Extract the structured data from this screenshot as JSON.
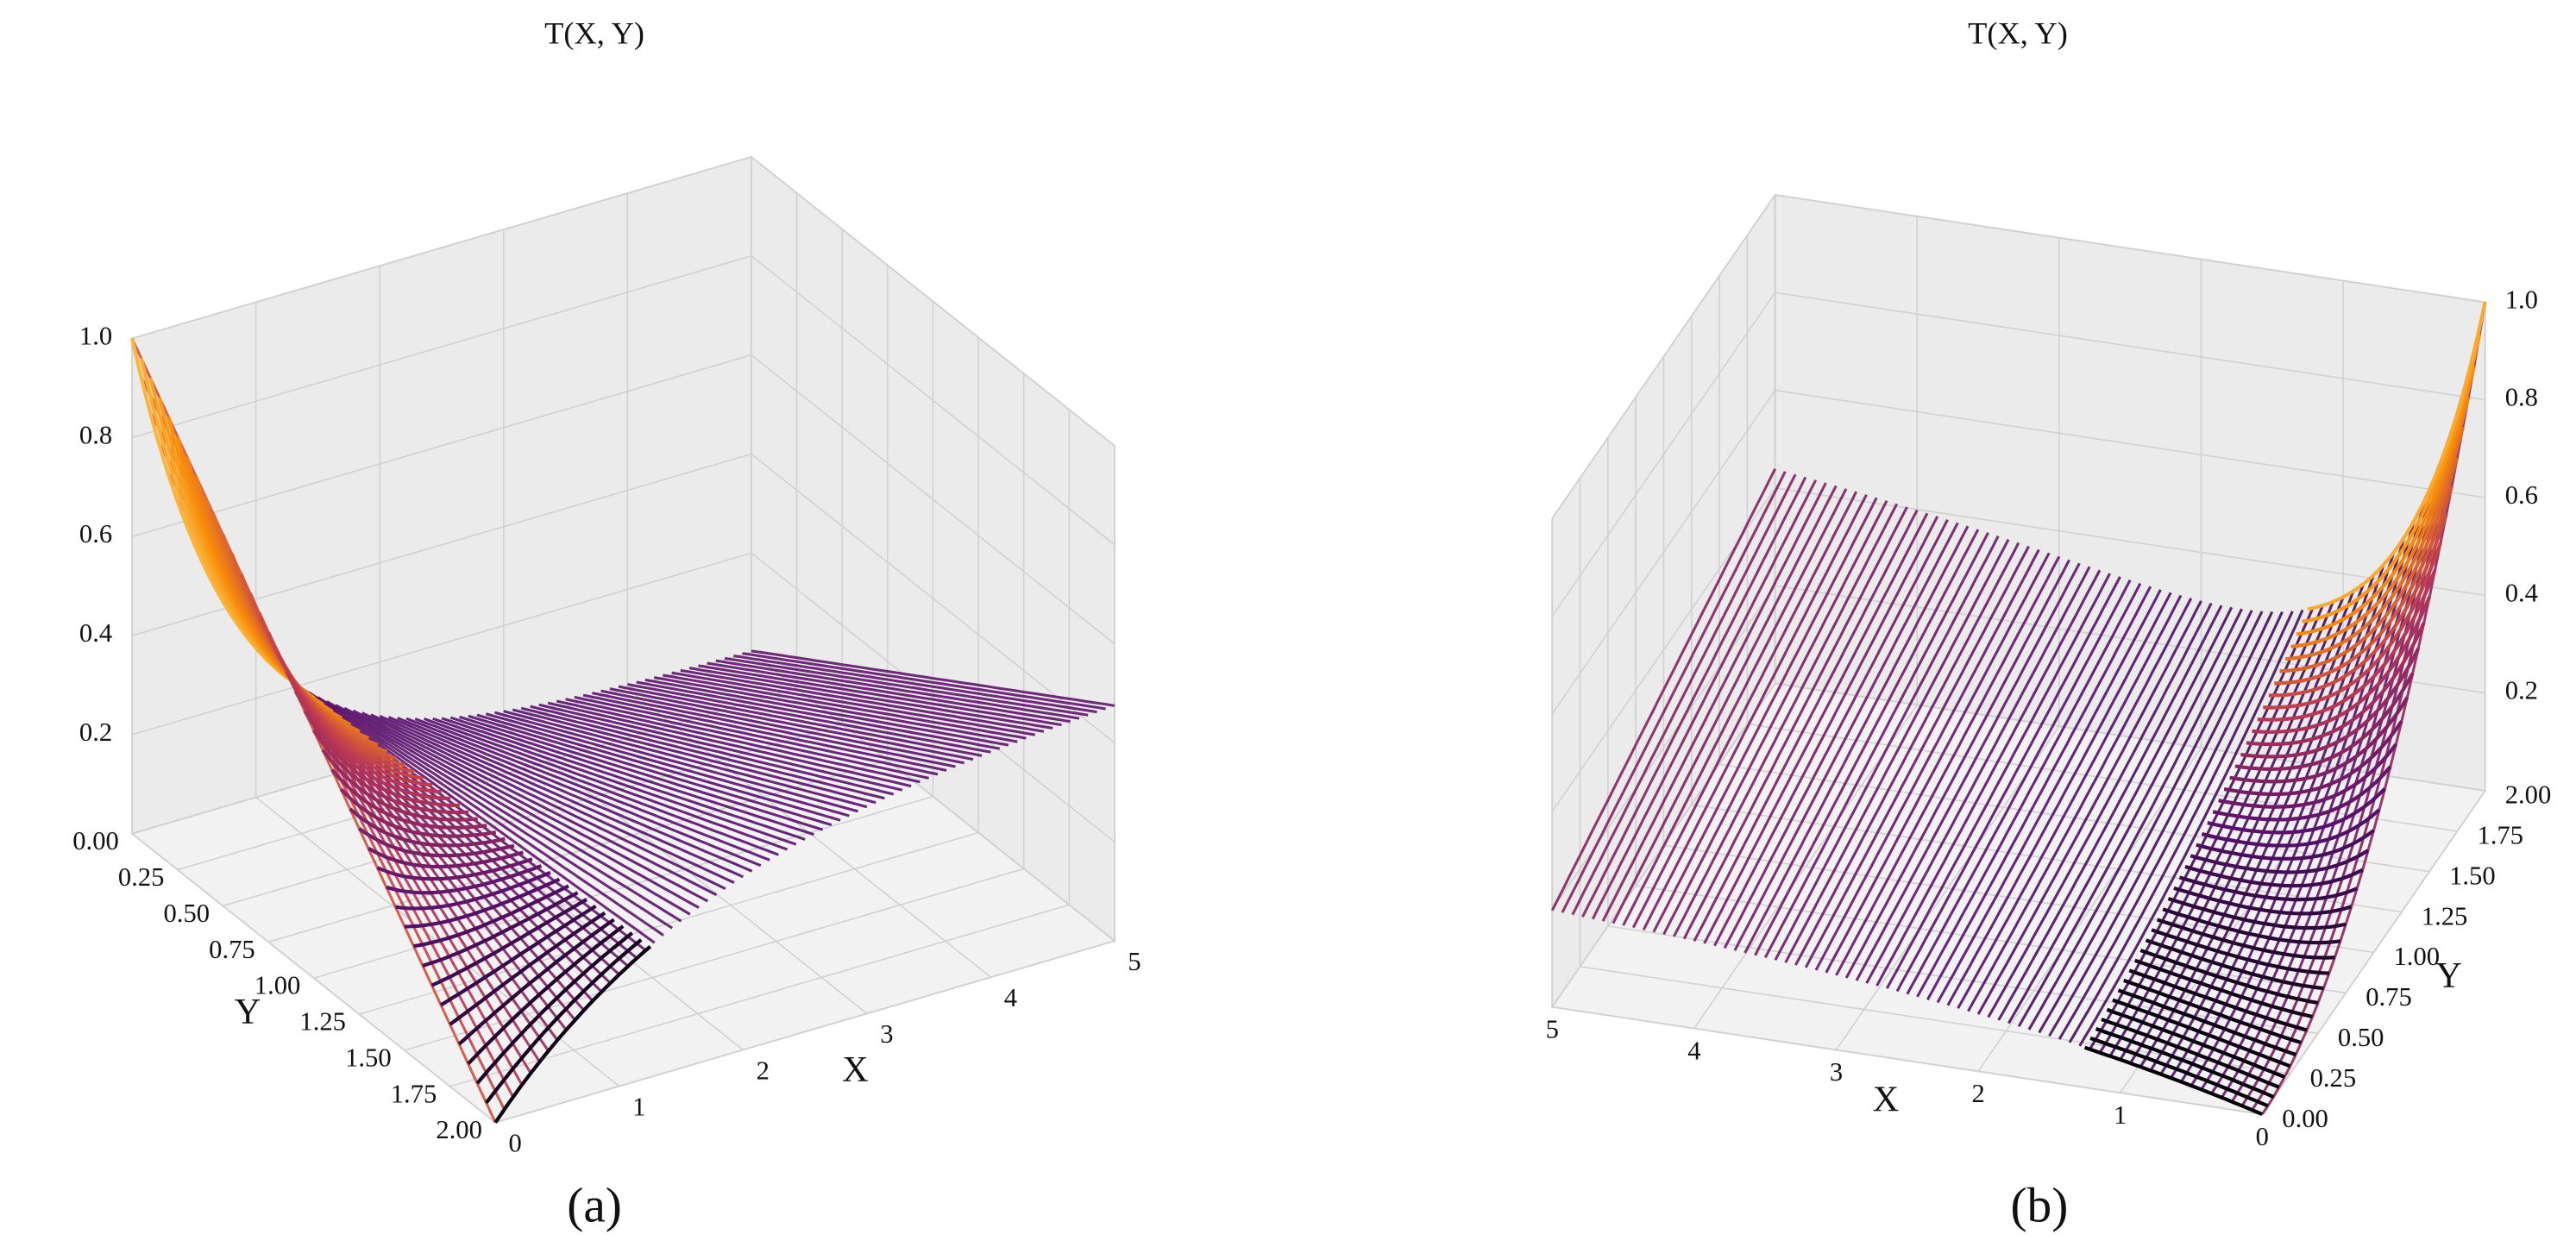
{
  "chart_data": [
    {
      "type": "surface3d",
      "title": "T(X, Y)",
      "xlabel": "X",
      "ylabel": "Y",
      "panel_label": "(a)",
      "xlim": [
        0,
        5
      ],
      "ylim": [
        0,
        2
      ],
      "zlim": [
        0,
        1
      ],
      "xticks": [
        0,
        1,
        2,
        3,
        4,
        5
      ],
      "yticks": [
        {
          "value": 0,
          "label": "0.00"
        },
        {
          "value": 0.25,
          "label": "0.25"
        },
        {
          "value": 0.5,
          "label": "0.50"
        },
        {
          "value": 0.75,
          "label": "0.75"
        },
        {
          "value": 1,
          "label": "1.00"
        },
        {
          "value": 1.25,
          "label": "1.25"
        },
        {
          "value": 1.5,
          "label": "1.50"
        },
        {
          "value": 1.75,
          "label": "1.75"
        },
        {
          "value": 2,
          "label": "2.00"
        }
      ],
      "zticks": [
        0.2,
        0.4,
        0.6,
        0.8,
        {
          "value": 1,
          "label": "1.0"
        }
      ],
      "colormap": "inferno",
      "grid": true
    },
    {
      "type": "surface3d",
      "title": "T(X, Y)",
      "xlabel": "X",
      "ylabel": "Y",
      "panel_label": "(b)",
      "xlim": [
        0,
        5
      ],
      "ylim": [
        0,
        2
      ],
      "zlim": [
        0,
        1
      ],
      "xticks": [
        0,
        1,
        2,
        3,
        4,
        5
      ],
      "yticks": [
        {
          "value": 0,
          "label": "0.00"
        },
        {
          "value": 0.25,
          "label": "0.25"
        },
        {
          "value": 0.5,
          "label": "0.50"
        },
        {
          "value": 0.75,
          "label": "0.75"
        },
        {
          "value": 1,
          "label": "1.00"
        },
        {
          "value": 1.25,
          "label": "1.25"
        },
        {
          "value": 1.5,
          "label": "1.50"
        },
        {
          "value": 1.75,
          "label": "1.75"
        },
        {
          "value": 2,
          "label": "2.00"
        }
      ],
      "zticks": [
        0.2,
        0.4,
        0.6,
        0.8,
        {
          "value": 1,
          "label": "1.0"
        }
      ],
      "colormap": "inferno",
      "grid": true
    }
  ]
}
